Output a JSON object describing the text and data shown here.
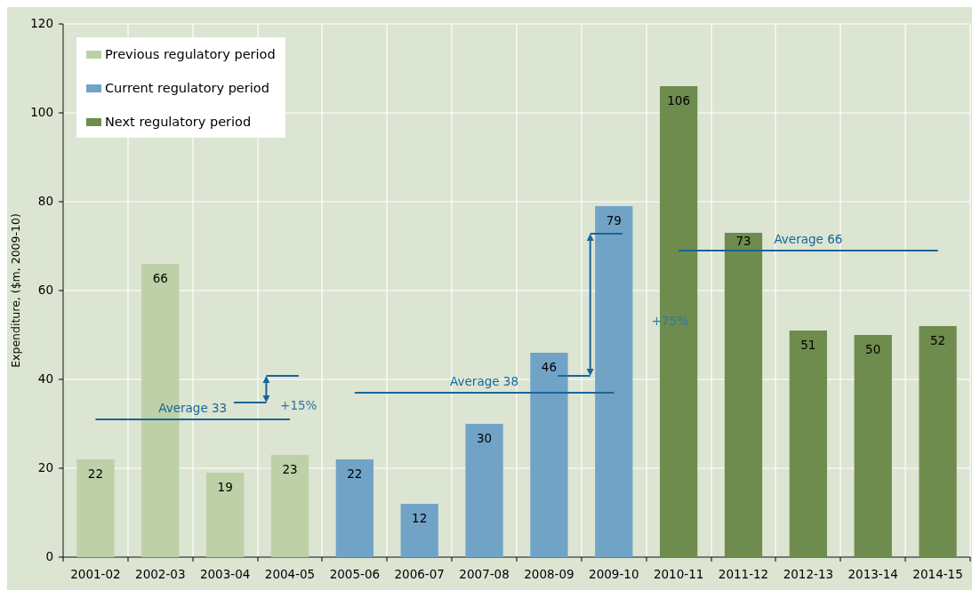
{
  "chart_data": {
    "type": "bar",
    "categories": [
      "2001-02",
      "2002-03",
      "2003-04",
      "2004-05",
      "2005-06",
      "2006-07",
      "2007-08",
      "2008-09",
      "2009-10",
      "2010-11",
      "2011-12",
      "2012-13",
      "2013-14",
      "2014-15"
    ],
    "series": [
      {
        "name": "Previous regulatory period",
        "color": "#bdd0a8",
        "values": [
          22,
          66,
          19,
          23,
          null,
          null,
          null,
          null,
          null,
          null,
          null,
          null,
          null,
          null
        ],
        "value_labels": [
          "22",
          "66",
          "19",
          "23",
          null,
          null,
          null,
          null,
          null,
          null,
          null,
          null,
          null,
          null
        ]
      },
      {
        "name": "Current regulatory period",
        "color": "#71a3c7",
        "values": [
          null,
          null,
          null,
          null,
          22,
          12,
          30,
          46,
          79,
          null,
          null,
          null,
          null,
          null
        ],
        "value_labels": [
          null,
          null,
          null,
          null,
          "22",
          "12",
          "30",
          "46",
          "79",
          null,
          null,
          null,
          null,
          null
        ]
      },
      {
        "name": "Next regulatory period",
        "color": "#6d8c4d",
        "values": [
          null,
          null,
          null,
          null,
          null,
          null,
          null,
          null,
          null,
          106,
          73,
          51,
          50,
          52
        ],
        "value_labels": [
          null,
          null,
          null,
          null,
          null,
          null,
          null,
          null,
          null,
          "106",
          "73",
          "51",
          "50",
          "52"
        ]
      },
      {
        "name": "Average 33",
        "type": "line",
        "color": "#17659b",
        "values": [
          31,
          31,
          31,
          31,
          null,
          null,
          null,
          null,
          null,
          null,
          null,
          null,
          null,
          null
        ]
      },
      {
        "name": "Average 38",
        "type": "line",
        "color": "#18669c",
        "values": [
          null,
          null,
          null,
          null,
          37,
          37,
          37,
          37,
          37,
          null,
          null,
          null,
          null,
          null
        ]
      },
      {
        "name": "Average 66",
        "type": "line",
        "color": "#16649a",
        "values": [
          null,
          null,
          null,
          null,
          null,
          null,
          null,
          null,
          null,
          69,
          69,
          69,
          69,
          69
        ]
      }
    ],
    "ylabel": "Expenditure, ($m, 2009-10)",
    "ylim": [
      0,
      120
    ],
    "yticks": [
      0,
      20,
      40,
      60,
      80,
      100,
      120
    ],
    "grid": true,
    "legend": "top left",
    "annotations": [
      "+15%",
      "+75%"
    ]
  }
}
